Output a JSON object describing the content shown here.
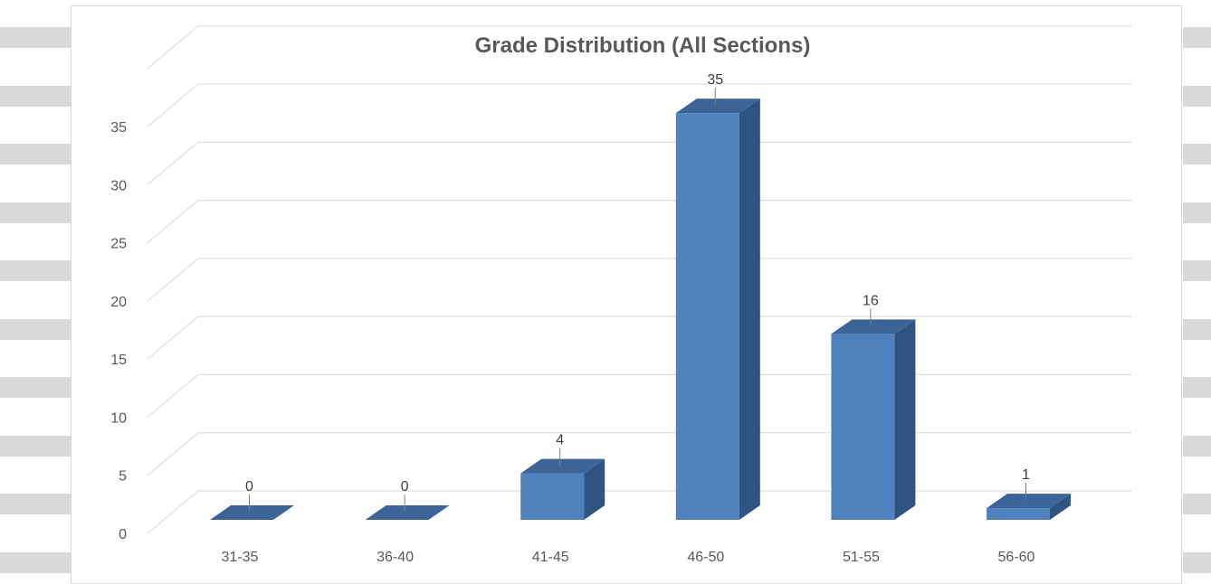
{
  "chart_data": {
    "type": "bar",
    "style": "3d-column",
    "title": "Grade Distribution (All Sections)",
    "categories": [
      "31-35",
      "36-40",
      "41-45",
      "46-50",
      "51-55",
      "56-60"
    ],
    "values": [
      0,
      0,
      4,
      35,
      16,
      1
    ],
    "data_labels": [
      "0",
      "0",
      "4",
      "35",
      "16",
      "1"
    ],
    "y_ticks": [
      "0",
      "5",
      "10",
      "15",
      "20",
      "25",
      "30",
      "35"
    ],
    "ylim": [
      0,
      35
    ],
    "grid": true,
    "legend": "none",
    "colors": {
      "bar_front": "#4f81bd",
      "bar_side": "#2f5482",
      "bar_top": "#3c6497",
      "gridline": "#d9d9d9",
      "title": "#595959",
      "tick_label": "#595959",
      "gutter_band": "#d9d9d9"
    }
  }
}
